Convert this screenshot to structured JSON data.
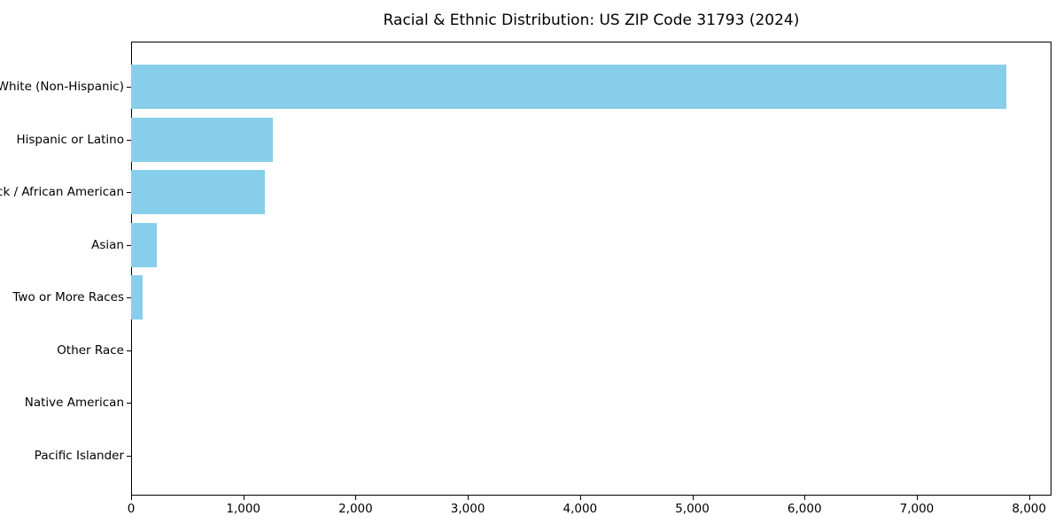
{
  "title": "Racial & Ethnic Distribution: US ZIP Code 31793 (2024)",
  "chart_data": {
    "type": "bar",
    "orientation": "horizontal",
    "title": "Racial & Ethnic Distribution: US ZIP Code 31793 (2024)",
    "xlabel": "",
    "ylabel": "",
    "categories": [
      "White (Non-Hispanic)",
      "Hispanic or Latino",
      "Black / African American",
      "Asian",
      "Two or More Races",
      "Other Race",
      "Native American",
      "Pacific Islander"
    ],
    "values": [
      7800,
      1260,
      1190,
      230,
      100,
      0,
      0,
      0
    ],
    "xlim": [
      0,
      8200
    ],
    "x_ticks": [
      0,
      1000,
      2000,
      3000,
      4000,
      5000,
      6000,
      7000,
      8000
    ],
    "x_tick_labels": [
      "0",
      "1,000",
      "2,000",
      "3,000",
      "4,000",
      "5,000",
      "6,000",
      "7,000",
      "8,000"
    ],
    "bar_color": "#87CEEB",
    "spine_color": "#000000",
    "text_color": "#000000",
    "grid": false,
    "legend": false
  }
}
